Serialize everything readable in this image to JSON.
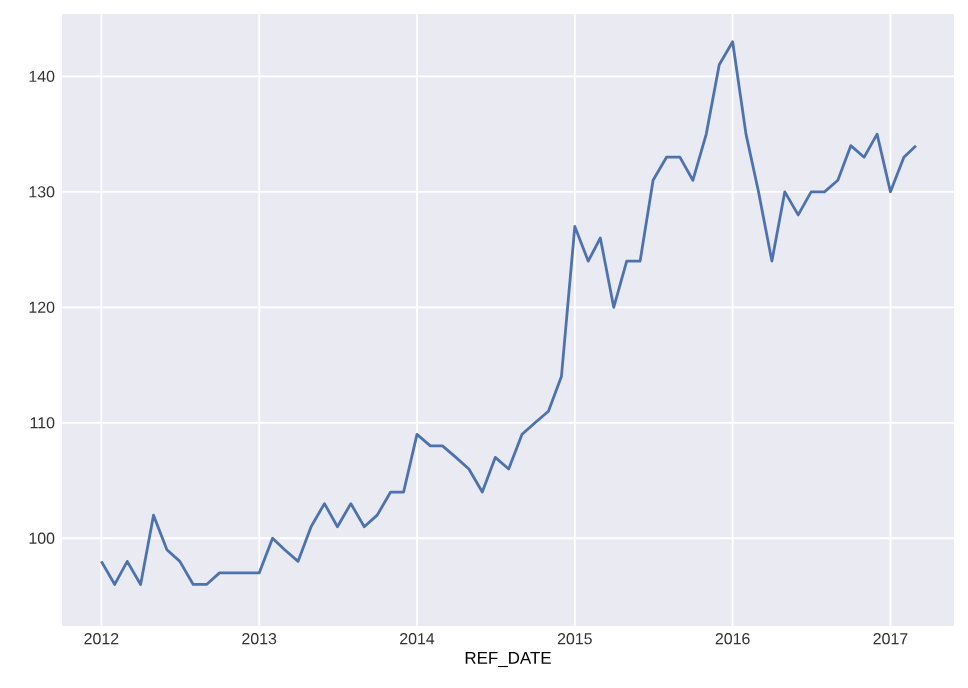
{
  "chart_data": {
    "type": "line",
    "xlabel": "REF_DATE",
    "x": [
      "2012-01",
      "2012-02",
      "2012-03",
      "2012-04",
      "2012-05",
      "2012-06",
      "2012-07",
      "2012-08",
      "2012-09",
      "2012-10",
      "2012-11",
      "2012-12",
      "2013-01",
      "2013-02",
      "2013-03",
      "2013-04",
      "2013-05",
      "2013-06",
      "2013-07",
      "2013-08",
      "2013-09",
      "2013-10",
      "2013-11",
      "2013-12",
      "2014-01",
      "2014-02",
      "2014-03",
      "2014-04",
      "2014-05",
      "2014-06",
      "2014-07",
      "2014-08",
      "2014-09",
      "2014-10",
      "2014-11",
      "2014-12",
      "2015-01",
      "2015-02",
      "2015-03",
      "2015-04",
      "2015-05",
      "2015-06",
      "2015-07",
      "2015-08",
      "2015-09",
      "2015-10",
      "2015-11",
      "2015-12",
      "2016-01",
      "2016-02",
      "2016-03",
      "2016-04",
      "2016-05",
      "2016-06",
      "2016-07",
      "2016-08",
      "2016-09",
      "2016-10",
      "2016-11",
      "2016-12",
      "2017-01",
      "2017-02",
      "2017-03"
    ],
    "series": [
      {
        "color": "#4c72b0",
        "values": [
          98,
          96,
          98,
          96,
          102,
          99,
          98,
          96,
          96,
          97,
          97,
          97,
          97,
          100,
          99,
          98,
          101,
          103,
          101,
          103,
          101,
          102,
          104,
          104,
          109,
          108,
          108,
          107,
          106,
          104,
          107,
          106,
          109,
          110,
          111,
          114,
          127,
          124,
          126,
          120,
          124,
          124,
          131,
          133,
          133,
          131,
          135,
          141,
          143,
          135,
          130,
          124,
          130,
          128,
          130,
          130,
          131,
          134,
          133,
          135,
          130,
          133,
          134
        ]
      }
    ],
    "xlim": [
      "2011-10-02",
      "2017-05-28"
    ],
    "xticks": [
      "2012",
      "2013",
      "2014",
      "2015",
      "2016",
      "2017"
    ],
    "ylim": [
      92.4,
      145.4
    ],
    "yticks": [
      100,
      110,
      120,
      130,
      140
    ],
    "grid": true,
    "marker": "none",
    "line_style": "solid"
  }
}
